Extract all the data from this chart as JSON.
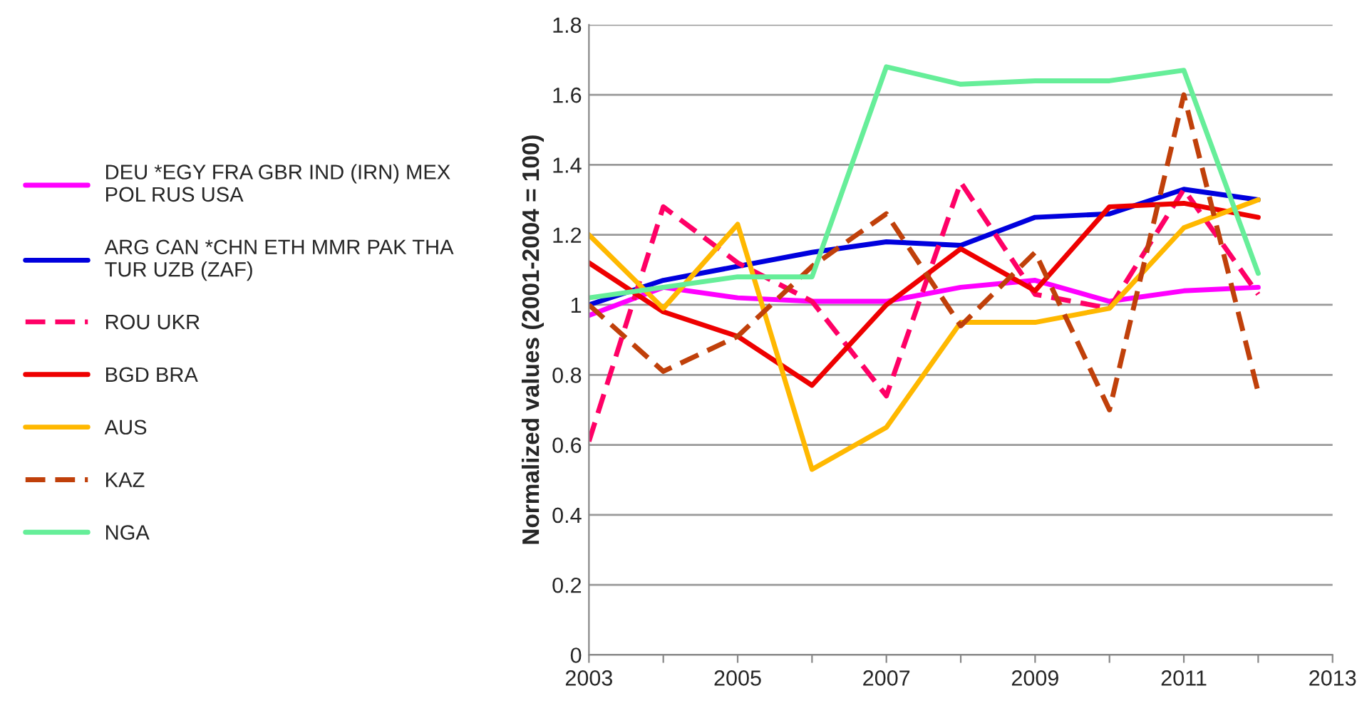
{
  "chart_data": {
    "type": "line",
    "ylabel": "Normalized values (2001-2004 = 100)",
    "x": [
      2003,
      2004,
      2005,
      2006,
      2007,
      2008,
      2009,
      2010,
      2011,
      2012
    ],
    "xlim": [
      2003,
      2013
    ],
    "xticks": [
      2003,
      {
        "value": 2004,
        "label": null
      },
      2005,
      {
        "value": 2006,
        "label": null
      },
      2007,
      {
        "value": 2008,
        "label": null
      },
      2009,
      {
        "value": 2010,
        "label": null
      },
      2011,
      {
        "value": 2012,
        "label": null
      },
      2013
    ],
    "ylim": [
      0,
      1.8
    ],
    "yticks": [
      0,
      0.2,
      0.4,
      0.6,
      0.8,
      1,
      1.2,
      1.4,
      1.6,
      1.8
    ],
    "grid": "y",
    "legend": "left",
    "marker": "none",
    "series": [
      {
        "name": "DEU *EGY FRA GBR IND (IRN) MEX POL RUS USA",
        "color": "#ff00ff",
        "line_style": "solid",
        "values": [
          0.97,
          1.05,
          1.02,
          1.01,
          1.01,
          1.05,
          1.07,
          1.01,
          1.04,
          1.05
        ]
      },
      {
        "name": "ARG CAN *CHN ETH MMR PAK THA TUR UZB (ZAF)",
        "color": "#0000dd",
        "line_style": "solid",
        "values": [
          1.0,
          1.07,
          1.11,
          1.15,
          1.18,
          1.17,
          1.25,
          1.26,
          1.33,
          1.3
        ]
      },
      {
        "name": "ROU UKR",
        "color": "#ff0066",
        "line_style": "dashed",
        "values": [
          0.61,
          1.28,
          1.12,
          1.01,
          0.74,
          1.35,
          1.03,
          0.99,
          1.33,
          1.03
        ]
      },
      {
        "name": "BGD BRA",
        "color": "#ee0000",
        "line_style": "solid",
        "values": [
          1.12,
          0.98,
          0.91,
          0.77,
          1.0,
          1.16,
          1.04,
          1.28,
          1.29,
          1.25
        ]
      },
      {
        "name": "AUS",
        "color": "#ffb800",
        "line_style": "solid",
        "values": [
          1.2,
          0.99,
          1.23,
          0.53,
          0.65,
          0.95,
          0.95,
          0.99,
          1.22,
          1.3
        ]
      },
      {
        "name": "KAZ",
        "color": "#c0400a",
        "line_style": "dashed",
        "values": [
          1.0,
          0.81,
          0.91,
          1.11,
          1.26,
          0.94,
          1.15,
          0.7,
          1.6,
          0.75
        ]
      },
      {
        "name": "NGA",
        "color": "#66ee99",
        "line_style": "solid",
        "values": [
          1.02,
          1.05,
          1.08,
          1.08,
          1.68,
          1.63,
          1.64,
          1.64,
          1.67,
          1.09
        ]
      }
    ]
  }
}
